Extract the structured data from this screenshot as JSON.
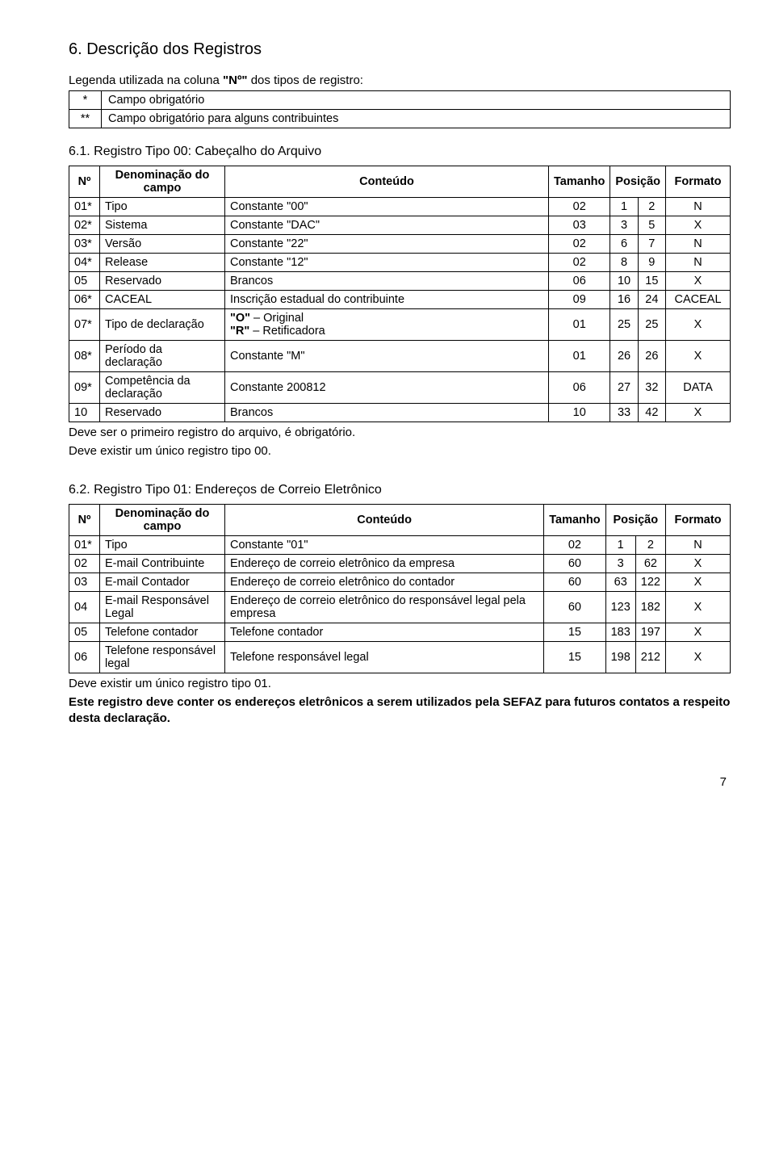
{
  "section6": {
    "heading": "6. Descrição dos Registros",
    "legend_intro_prefix": "Legenda utilizada na coluna ",
    "legend_intro_bold": "\"Nº\"",
    "legend_intro_suffix": " dos tipos de registro:",
    "legend_rows": [
      {
        "sym": "*",
        "desc": "Campo obrigatório"
      },
      {
        "sym": "**",
        "desc": "Campo obrigatório para alguns contribuintes"
      }
    ]
  },
  "section61": {
    "heading": "6.1. Registro Tipo 00: Cabeçalho do Arquivo",
    "headers": {
      "no": "Nº",
      "denom": "Denominação do campo",
      "cont": "Conteúdo",
      "tam": "Tamanho",
      "pos": "Posição",
      "fmt": "Formato"
    },
    "rows": [
      {
        "no": "01*",
        "denom": "Tipo",
        "cont": "Constante \"00\"",
        "tam": "02",
        "pos1": "1",
        "pos2": "2",
        "fmt": "N"
      },
      {
        "no": "02*",
        "denom": "Sistema",
        "cont": "Constante \"DAC\"",
        "tam": "03",
        "pos1": "3",
        "pos2": "5",
        "fmt": "X"
      },
      {
        "no": "03*",
        "denom": "Versão",
        "cont": "Constante \"22\"",
        "tam": "02",
        "pos1": "6",
        "pos2": "7",
        "fmt": "N"
      },
      {
        "no": "04*",
        "denom": "Release",
        "cont": "Constante \"12\"",
        "tam": "02",
        "pos1": "8",
        "pos2": "9",
        "fmt": "N"
      },
      {
        "no": "05",
        "denom": "Reservado",
        "cont": "Brancos",
        "tam": "06",
        "pos1": "10",
        "pos2": "15",
        "fmt": "X"
      },
      {
        "no": "06*",
        "denom": "CACEAL",
        "cont": "Inscrição estadual do contribuinte",
        "tam": "09",
        "pos1": "16",
        "pos2": "24",
        "fmt": "CACEAL"
      },
      {
        "no": "07*",
        "denom": "Tipo de declaração",
        "cont_html": "<b>\"O\"</b> – Original<br><b>\"R\"</b> – Retificadora",
        "tam": "01",
        "pos1": "25",
        "pos2": "25",
        "fmt": "X"
      },
      {
        "no": "08*",
        "denom": "Período da declaração",
        "cont": "Constante \"M\"",
        "tam": "01",
        "pos1": "26",
        "pos2": "26",
        "fmt": "X"
      },
      {
        "no": "09*",
        "denom": "Competência da declaração",
        "cont": "Constante 200812",
        "tam": "06",
        "pos1": "27",
        "pos2": "32",
        "fmt": "DATA"
      },
      {
        "no": "10",
        "denom": "Reservado",
        "cont": "Brancos",
        "tam": "10",
        "pos1": "33",
        "pos2": "42",
        "fmt": "X"
      }
    ],
    "note1": "Deve ser o primeiro registro do arquivo, é obrigatório.",
    "note2": "Deve existir um único registro tipo 00."
  },
  "section62": {
    "heading": "6.2. Registro Tipo 01: Endereços de Correio Eletrônico",
    "headers": {
      "no": "Nº",
      "denom": "Denominação do campo",
      "cont": "Conteúdo",
      "tam": "Tamanho",
      "pos": "Posição",
      "fmt": "Formato"
    },
    "rows": [
      {
        "no": "01*",
        "denom": "Tipo",
        "cont": "Constante \"01\"",
        "tam": "02",
        "pos1": "1",
        "pos2": "2",
        "fmt": "N"
      },
      {
        "no": "02",
        "denom": "E-mail Contribuinte",
        "cont": "Endereço de correio eletrônico da empresa",
        "tam": "60",
        "pos1": "3",
        "pos2": "62",
        "fmt": "X"
      },
      {
        "no": "03",
        "denom": "E-mail Contador",
        "cont": "Endereço de correio eletrônico do contador",
        "tam": "60",
        "pos1": "63",
        "pos2": "122",
        "fmt": "X"
      },
      {
        "no": "04",
        "denom": "E-mail Responsável Legal",
        "cont": "Endereço de correio eletrônico do responsável legal pela empresa",
        "tam": "60",
        "pos1": "123",
        "pos2": "182",
        "fmt": "X"
      },
      {
        "no": "05",
        "denom": "Telefone contador",
        "cont": "Telefone contador",
        "tam": "15",
        "pos1": "183",
        "pos2": "197",
        "fmt": "X"
      },
      {
        "no": "06",
        "denom": "Telefone responsável legal",
        "cont": "Telefone responsável legal",
        "tam": "15",
        "pos1": "198",
        "pos2": "212",
        "fmt": "X"
      }
    ],
    "note1": "Deve existir um único registro tipo 01.",
    "note2": "Este registro deve conter os endereços eletrônicos a serem utilizados pela SEFAZ para futuros contatos a respeito desta declaração."
  },
  "page_number": "7"
}
